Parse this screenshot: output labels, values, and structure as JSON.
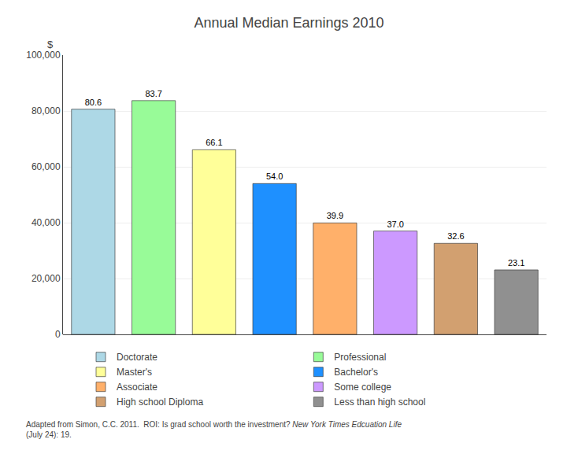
{
  "chart_data": {
    "type": "bar",
    "title": "Annual Median Earnings 2010",
    "ylabel": "$",
    "categories": [
      "Doctorate",
      "Professional",
      "Master's",
      "Bachelor's",
      "Associate",
      "Some college",
      "High school Diploma",
      "Less than high school"
    ],
    "values": [
      80600,
      83700,
      66100,
      54000,
      39900,
      37000,
      32600,
      23100
    ],
    "value_labels": [
      "80.6",
      "83.7",
      "66.1",
      "54.0",
      "39.9",
      "37.0",
      "32.6",
      "23.1"
    ],
    "colors": [
      "#ADD8E6",
      "#98FB98",
      "#FFFF99",
      "#1E90FF",
      "#FFB06A",
      "#CC99FF",
      "#D2A070",
      "#909090"
    ],
    "ylim": [
      0,
      100000
    ],
    "yticks": [
      0,
      {
        "value": 20000,
        "label": "20,000"
      },
      {
        "value": 40000,
        "label": "40,000"
      },
      {
        "value": 60000,
        "label": "60,000"
      },
      {
        "value": 80000,
        "label": "80,000"
      },
      {
        "value": 100000,
        "label": "100,000"
      }
    ],
    "grid": true,
    "data_labels": true,
    "tick_labels": "y",
    "legend": "bottom",
    "annotations": [
      "Adapted from Simon, C.C. 2011.  ROI: Is grad school worth the investment? ",
      "New York Times Edcuation Life",
      "(July 24): 19."
    ]
  }
}
